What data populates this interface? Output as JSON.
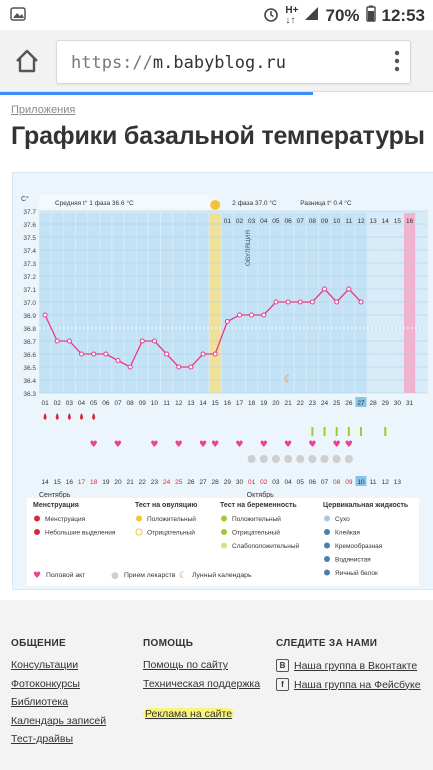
{
  "status_bar": {
    "battery": "70%",
    "time": "12:53",
    "icons": [
      "photo-icon",
      "alarm-icon",
      "hplus-icon",
      "signal-icon",
      "battery-icon"
    ]
  },
  "browser": {
    "url_protocol": "https://",
    "url_host": "m.babyblog.ru",
    "icons": [
      "home-icon",
      "more-vert-icon"
    ]
  },
  "page": {
    "breadcrumb": "Приложения",
    "title": "Графики базальной температуры"
  },
  "chart_data": {
    "type": "line",
    "y_unit": "C°",
    "ylim": [
      36.3,
      37.7
    ],
    "y_ticks": [
      "37.7",
      "37.6",
      "37.5",
      "37.4",
      "37.3",
      "37.2",
      "37.1",
      "37.0",
      "36.9",
      "36.8",
      "36.7",
      "36.6",
      "36.5",
      "36.4",
      "36.3"
    ],
    "cycle_days": [
      "01",
      "02",
      "03",
      "04",
      "05",
      "06",
      "07",
      "08",
      "09",
      "10",
      "11",
      "12",
      "13",
      "14",
      "15",
      "16",
      "01",
      "02",
      "03",
      "04",
      "05",
      "06",
      "07",
      "08",
      "09",
      "10",
      "11",
      "12",
      "13",
      "14",
      "15",
      "16",
      "17",
      "18",
      "19",
      "20",
      "21",
      "22",
      "23",
      "24",
      "25",
      "26",
      "27",
      "28",
      "29",
      "30",
      "31"
    ],
    "day_labels_top": [
      "01",
      "02",
      "03",
      "04",
      "05",
      "06",
      "07",
      "08",
      "09",
      "10",
      "11",
      "12",
      "13",
      "14",
      "15",
      "16"
    ],
    "day_labels_bottom": [
      "16",
      "17",
      "18",
      "19",
      "20",
      "21",
      "22",
      "23",
      "24",
      "25",
      "26",
      "27",
      "28",
      "29",
      "30",
      "31"
    ],
    "x": [
      1,
      2,
      3,
      4,
      5,
      6,
      7,
      8,
      9,
      10,
      11,
      12,
      13,
      14,
      15,
      16,
      17,
      18,
      19,
      20,
      21,
      22,
      23,
      24,
      25,
      26,
      27
    ],
    "temperature": [
      36.9,
      36.7,
      36.7,
      36.6,
      36.6,
      36.6,
      36.55,
      36.5,
      36.7,
      36.7,
      36.6,
      36.5,
      36.5,
      36.6,
      36.6,
      36.85,
      36.9,
      36.9,
      36.9,
      37.0,
      37.0,
      37.0,
      37.0,
      37.1,
      37.0,
      37.1,
      37.0
    ],
    "phase1_label": "Средняя t° 1 фаза 36.6 °C",
    "phase2_label": "2 фаза 37.0 °C",
    "diff_label": "Разница t° 0.4 °C",
    "ovulation_label": "ОВУЛЯЦИЯ",
    "ovulation_day": 15,
    "coverline": 36.8,
    "highlight_day": 27,
    "calendar_dates": [
      "14",
      "15",
      "16",
      "17",
      "18",
      "19",
      "20",
      "21",
      "22",
      "23",
      "24",
      "25",
      "26",
      "27",
      "28",
      "29",
      "30",
      "01",
      "02",
      "03",
      "04",
      "05",
      "06",
      "07",
      "08",
      "09",
      "10",
      "11",
      "12",
      "13"
    ],
    "calendar_month_1": "Сентябрь",
    "calendar_month_2": "Октябрь",
    "events": {
      "menstruation": [
        1,
        2,
        3,
        4,
        5
      ],
      "intercourse": [
        5,
        7,
        10,
        12,
        14,
        15,
        17,
        19,
        21,
        23,
        25,
        26
      ],
      "pregnancy_test_negative": [
        18,
        19,
        20,
        21,
        22,
        23,
        24,
        25,
        26
      ],
      "ovulation_test_positive": [
        23,
        24,
        25,
        26,
        27,
        29
      ],
      "lunar": [
        21
      ]
    },
    "colors": {
      "phase1": "#bfe0f6",
      "phase2": "#bfe0f6",
      "ovulation": "#f5df8a",
      "line": "#e83a8a",
      "highlight": "#f7a8c6"
    }
  },
  "legend": {
    "groups": [
      {
        "title": "Менструация",
        "items": [
          "Менструация",
          "Небольшие выделения"
        ]
      },
      {
        "title": "Тест на овуляцию",
        "items": [
          "Положительный",
          "Отрицательный"
        ]
      },
      {
        "title": "Тест на беременность",
        "items": [
          "Положительный",
          "Отрицательный",
          "Слабоположительный"
        ]
      },
      {
        "title": "Цервикальная жидкость",
        "items": [
          "Сухо",
          "Клейкая",
          "Кремообразная",
          "Водянистая",
          "Яичный белок"
        ]
      }
    ],
    "bottom_items": [
      "Половой акт",
      "Прием лекарств",
      "Лунный календарь"
    ]
  },
  "footer": {
    "col1_title": "ОБЩЕНИЕ",
    "col1_links": [
      "Консультации",
      "Фотоконкурсы",
      "Библиотека",
      "Календарь записей",
      "Тест-драйвы"
    ],
    "col2_title": "ПОМОЩЬ",
    "col2_links": [
      "Помощь по сайту",
      "Техническая поддержка",
      "Реклама на сайте"
    ],
    "col3_title": "СЛЕДИТЕ ЗА НАМИ",
    "col3_links": [
      "Наша группа в Вконтакте",
      "Наша группа на Фейсбуке"
    ],
    "col3_icons": [
      "В",
      "f"
    ]
  }
}
